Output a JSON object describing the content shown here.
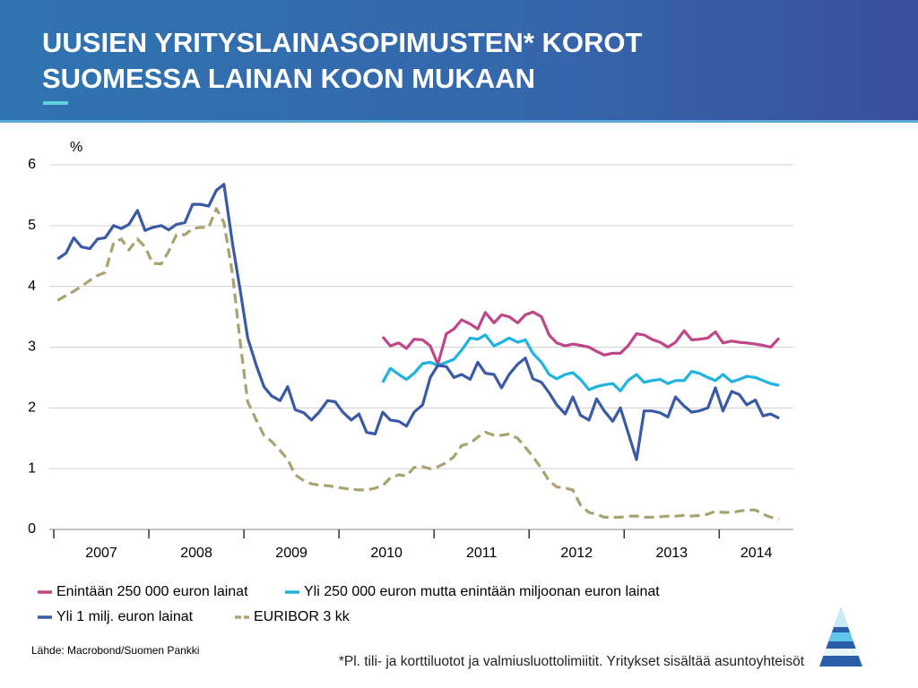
{
  "chart_data": {
    "type": "line",
    "title": [
      "UUSIEN YRITYSLAINASOPIMUSTEN* KOROT",
      "SUOMESSA  LAINAN KOON MUKAAN"
    ],
    "y_unit": "%",
    "categories": [
      "2007",
      "2008",
      "2009",
      "2010",
      "2011",
      "2012",
      "2013",
      "2014"
    ],
    "xlim": [
      2007,
      2014.78
    ],
    "xticks": [
      2007,
      2008,
      2009,
      2010,
      2011,
      2012,
      2013,
      2014
    ],
    "ylim": [
      0,
      6
    ],
    "yticks": [
      0,
      1,
      2,
      3,
      4,
      5,
      6
    ],
    "grid": true,
    "x": [
      2007.04,
      2007.13,
      2007.21,
      2007.29,
      2007.38,
      2007.46,
      2007.54,
      2007.63,
      2007.71,
      2007.79,
      2007.88,
      2007.96,
      2008.04,
      2008.13,
      2008.21,
      2008.29,
      2008.38,
      2008.46,
      2008.54,
      2008.63,
      2008.71,
      2008.79,
      2008.88,
      2008.96,
      2009.04,
      2009.13,
      2009.21,
      2009.29,
      2009.38,
      2009.46,
      2009.54,
      2009.63,
      2009.71,
      2009.79,
      2009.88,
      2009.96,
      2010.04,
      2010.13,
      2010.21,
      2010.29,
      2010.38,
      2010.46,
      2010.54,
      2010.63,
      2010.71,
      2010.79,
      2010.88,
      2010.96,
      2011.04,
      2011.13,
      2011.21,
      2011.29,
      2011.38,
      2011.46,
      2011.54,
      2011.63,
      2011.71,
      2011.79,
      2011.88,
      2011.96,
      2012.04,
      2012.13,
      2012.21,
      2012.29,
      2012.38,
      2012.46,
      2012.54,
      2012.63,
      2012.71,
      2012.79,
      2012.88,
      2012.96,
      2013.04,
      2013.13,
      2013.21,
      2013.29,
      2013.38,
      2013.46,
      2013.54,
      2013.63,
      2013.71,
      2013.79,
      2013.88,
      2013.96,
      2014.04,
      2014.13,
      2014.21,
      2014.29,
      2014.38,
      2014.46,
      2014.54,
      2014.63
    ],
    "series": [
      {
        "name": "Enintään 250 000 euron lainat",
        "color": "#c0468a",
        "style": "solid",
        "values": [
          null,
          null,
          null,
          null,
          null,
          null,
          null,
          null,
          null,
          null,
          null,
          null,
          null,
          null,
          null,
          null,
          null,
          null,
          null,
          null,
          null,
          null,
          null,
          null,
          null,
          null,
          null,
          null,
          null,
          null,
          null,
          null,
          null,
          null,
          null,
          null,
          null,
          null,
          null,
          null,
          null,
          3.17,
          3.02,
          3.07,
          2.98,
          3.13,
          3.12,
          3.02,
          2.72,
          3.22,
          3.3,
          3.45,
          3.38,
          3.3,
          3.57,
          3.4,
          3.53,
          3.5,
          3.4,
          3.53,
          3.58,
          3.5,
          3.2,
          3.07,
          3.02,
          3.05,
          3.03,
          3.0,
          2.93,
          2.87,
          2.9,
          2.9,
          3.02,
          3.22,
          3.2,
          3.13,
          3.08,
          3.0,
          3.08,
          3.27,
          3.12,
          3.13,
          3.15,
          3.25,
          3.07,
          3.1,
          3.08,
          3.07,
          3.05,
          3.03,
          3.0,
          3.15
        ]
      },
      {
        "name": "Yli 250 000 euron mutta enintään miljoonan euron lainat",
        "color": "#1fb3e0",
        "style": "solid",
        "values": [
          null,
          null,
          null,
          null,
          null,
          null,
          null,
          null,
          null,
          null,
          null,
          null,
          null,
          null,
          null,
          null,
          null,
          null,
          null,
          null,
          null,
          null,
          null,
          null,
          null,
          null,
          null,
          null,
          null,
          null,
          null,
          null,
          null,
          null,
          null,
          null,
          null,
          null,
          null,
          null,
          null,
          2.42,
          2.65,
          2.55,
          2.47,
          2.57,
          2.73,
          2.75,
          2.7,
          2.75,
          2.8,
          2.95,
          3.15,
          3.13,
          3.2,
          3.02,
          3.08,
          3.15,
          3.08,
          3.12,
          2.9,
          2.75,
          2.55,
          2.48,
          2.55,
          2.58,
          2.47,
          2.3,
          2.35,
          2.38,
          2.4,
          2.28,
          2.45,
          2.55,
          2.42,
          2.45,
          2.47,
          2.4,
          2.45,
          2.45,
          2.6,
          2.57,
          2.5,
          2.45,
          2.55,
          2.43,
          2.47,
          2.52,
          2.5,
          2.45,
          2.4,
          2.37
        ]
      },
      {
        "name": "Yli 1 milj. euron lainat",
        "color": "#3a5aa5",
        "style": "solid",
        "values": [
          4.45,
          4.55,
          4.8,
          4.65,
          4.62,
          4.78,
          4.8,
          5.0,
          4.95,
          5.02,
          5.25,
          4.92,
          4.97,
          5.0,
          4.93,
          5.02,
          5.05,
          5.35,
          5.35,
          5.32,
          5.58,
          5.68,
          4.7,
          3.95,
          3.15,
          2.7,
          2.35,
          2.2,
          2.12,
          2.35,
          1.97,
          1.92,
          1.8,
          1.93,
          2.12,
          2.1,
          1.93,
          1.8,
          1.9,
          1.6,
          1.57,
          1.93,
          1.8,
          1.78,
          1.7,
          1.93,
          2.05,
          2.5,
          2.7,
          2.68,
          2.5,
          2.55,
          2.47,
          2.75,
          2.57,
          2.55,
          2.33,
          2.55,
          2.72,
          2.82,
          2.48,
          2.42,
          2.25,
          2.05,
          1.9,
          2.18,
          1.88,
          1.8,
          2.15,
          1.95,
          1.78,
          2.0,
          1.6,
          1.15,
          1.95,
          1.95,
          1.92,
          1.85,
          2.18,
          2.03,
          1.93,
          1.95,
          2.0,
          2.33,
          1.95,
          2.27,
          2.22,
          2.05,
          2.13,
          1.87,
          1.9,
          1.83
        ]
      },
      {
        "name": "EURIBOR 3 kk",
        "color": "#a9a36f",
        "style": "dashed",
        "values": [
          3.77,
          3.85,
          3.92,
          4.0,
          4.1,
          4.18,
          4.23,
          4.72,
          4.78,
          4.6,
          4.78,
          4.65,
          4.38,
          4.37,
          4.58,
          4.85,
          4.85,
          4.95,
          4.97,
          4.97,
          5.28,
          5.05,
          4.2,
          3.1,
          2.1,
          1.8,
          1.55,
          1.45,
          1.3,
          1.15,
          0.9,
          0.8,
          0.75,
          0.73,
          0.72,
          0.7,
          0.68,
          0.66,
          0.65,
          0.65,
          0.68,
          0.72,
          0.85,
          0.9,
          0.88,
          1.02,
          1.03,
          1.0,
          1.03,
          1.1,
          1.2,
          1.38,
          1.42,
          1.52,
          1.6,
          1.55,
          1.55,
          1.57,
          1.5,
          1.35,
          1.2,
          1.0,
          0.8,
          0.7,
          0.68,
          0.65,
          0.4,
          0.28,
          0.25,
          0.2,
          0.2,
          0.2,
          0.22,
          0.22,
          0.2,
          0.2,
          0.21,
          0.22,
          0.22,
          0.23,
          0.22,
          0.23,
          0.25,
          0.3,
          0.28,
          0.28,
          0.3,
          0.32,
          0.32,
          0.25,
          0.2,
          0.18
        ]
      }
    ],
    "source": "Lähde: Macrobond/Suomen Pankki",
    "footnote": "*Pl. tili- ja korttiluotot ja valmiusluottolimiitit. Yritykset sisältää asuntoyhteisöt"
  }
}
